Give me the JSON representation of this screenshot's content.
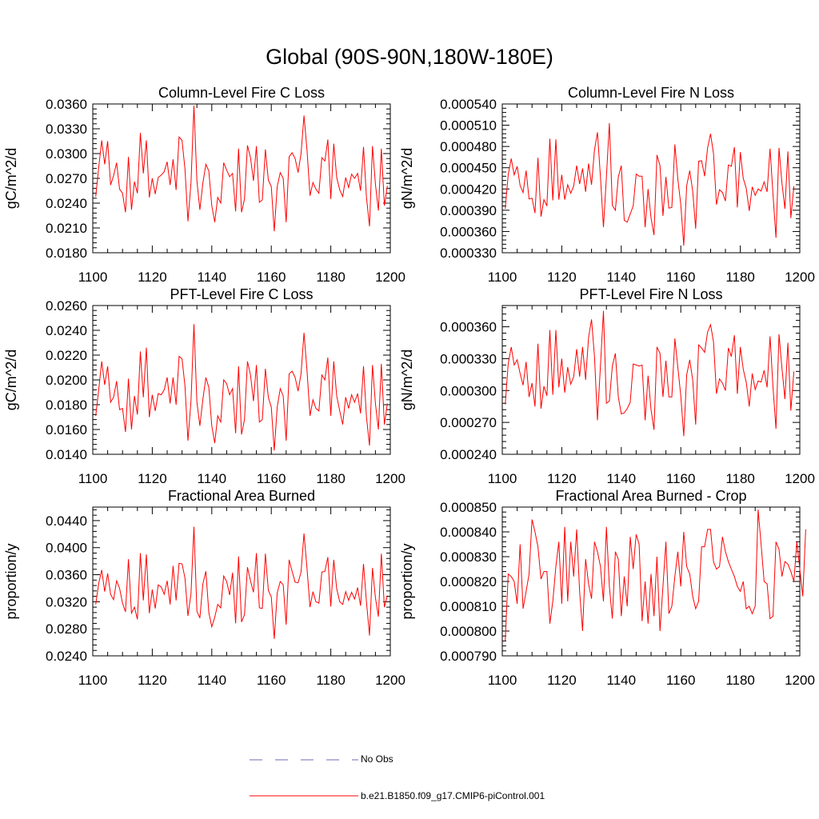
{
  "figure": {
    "title": "Global (90S-90N,180W-180E)",
    "series_color": "#ff0000",
    "obs_color": "#6a6ab8"
  },
  "legend": {
    "obs_label": "No Obs",
    "model_label": "b.e21.B1850.f09_g17.CMIP6-piControl.001"
  },
  "chart_data": [
    {
      "type": "line",
      "title": "Column-Level Fire C Loss",
      "xlabel": "",
      "ylabel": "gC/m^2/d",
      "xlim": [
        1100,
        1200
      ],
      "ylim": [
        0.018,
        0.036
      ],
      "x_ticks": [
        "1100",
        "1120",
        "1140",
        "1160",
        "1180",
        "1200"
      ],
      "y_ticks": [
        "0.0180",
        "0.0210",
        "0.0240",
        "0.0270",
        "0.0300",
        "0.0330",
        "0.0360"
      ],
      "x_start": 1101,
      "series": [
        {
          "name": "b.e21.B1850.f09_g17.CMIP6-piControl.001",
          "values": [
            0.0248,
            0.0283,
            0.0316,
            0.0287,
            0.0315,
            0.0262,
            0.0273,
            0.0289,
            0.0257,
            0.0252,
            0.0229,
            0.0296,
            0.0232,
            0.0266,
            0.0252,
            0.0325,
            0.0276,
            0.0316,
            0.0247,
            0.027,
            0.0251,
            0.0271,
            0.0274,
            0.0278,
            0.029,
            0.0262,
            0.0293,
            0.0256,
            0.032,
            0.0316,
            0.0281,
            0.0218,
            0.0265,
            0.0358,
            0.0267,
            0.0232,
            0.0264,
            0.0287,
            0.0279,
            0.0237,
            0.0217,
            0.0247,
            0.024,
            0.0289,
            0.028,
            0.0272,
            0.0276,
            0.023,
            0.0306,
            0.0229,
            0.0245,
            0.031,
            0.0295,
            0.0267,
            0.0309,
            0.0241,
            0.0244,
            0.0305,
            0.0268,
            0.026,
            0.0206,
            0.026,
            0.0277,
            0.027,
            0.0217,
            0.0296,
            0.0301,
            0.0294,
            0.0277,
            0.03,
            0.0346,
            0.0305,
            0.0249,
            0.0265,
            0.0257,
            0.0252,
            0.0295,
            0.0291,
            0.0317,
            0.0245,
            0.0312,
            0.0271,
            0.0256,
            0.0248,
            0.0271,
            0.0259,
            0.0275,
            0.027,
            0.0276,
            0.0255,
            0.0308,
            0.0247,
            0.0212,
            0.0309,
            0.0263,
            0.0231,
            0.0306,
            0.0237,
            0.0261
          ]
        }
      ]
    },
    {
      "type": "line",
      "title": "Column-Level Fire N Loss",
      "xlabel": "",
      "ylabel": "gN/m^2/d",
      "xlim": [
        1100,
        1200
      ],
      "ylim": [
        0.00033,
        0.00054
      ],
      "x_ticks": [
        "1100",
        "1120",
        "1140",
        "1160",
        "1180",
        "1200"
      ],
      "y_ticks": [
        "0.000330",
        "0.000360",
        "0.000390",
        "0.000420",
        "0.000450",
        "0.000480",
        "0.000510",
        "0.000540"
      ],
      "x_start": 1101,
      "series": [
        {
          "name": "b.e21.B1850.f09_g17.CMIP6-piControl.001",
          "values": [
            0.000392,
            0.00044,
            0.000463,
            0.00044,
            0.000452,
            0.000425,
            0.000415,
            0.000446,
            0.000406,
            0.000407,
            0.000386,
            0.000464,
            0.000381,
            0.000405,
            0.000396,
            0.000491,
            0.000404,
            0.00049,
            0.000405,
            0.00044,
            0.000405,
            0.000426,
            0.000414,
            0.000424,
            0.000453,
            0.000427,
            0.000449,
            0.000416,
            0.000456,
            0.000426,
            0.000475,
            0.0005,
            0.000436,
            0.000366,
            0.000437,
            0.000513,
            0.000397,
            0.00039,
            0.000437,
            0.000453,
            0.000376,
            0.000373,
            0.000385,
            0.000396,
            0.000441,
            0.000438,
            0.000438,
            0.000366,
            0.00042,
            0.000379,
            0.000355,
            0.000468,
            0.000453,
            0.000382,
            0.000437,
            0.000393,
            0.000394,
            0.000483,
            0.000434,
            0.000398,
            0.00034,
            0.000425,
            0.000446,
            0.000417,
            0.000364,
            0.000459,
            0.00046,
            0.000438,
            0.000478,
            0.000498,
            0.00047,
            0.000398,
            0.000419,
            0.000415,
            0.000403,
            0.000454,
            0.000452,
            0.000479,
            0.000394,
            0.000472,
            0.000435,
            0.000421,
            0.000389,
            0.000423,
            0.000411,
            0.00042,
            0.000417,
            0.00043,
            0.000416,
            0.000477,
            0.000412,
            0.000351,
            0.000478,
            0.000428,
            0.000392,
            0.000473,
            0.000379,
            0.000424
          ]
        }
      ]
    },
    {
      "type": "line",
      "title": "PFT-Level Fire C Loss",
      "xlabel": "",
      "ylabel": "gC/m^2/d",
      "xlim": [
        1100,
        1200
      ],
      "ylim": [
        0.014,
        0.026
      ],
      "x_ticks": [
        "1100",
        "1120",
        "1140",
        "1160",
        "1180",
        "1200"
      ],
      "y_ticks": [
        "0.0140",
        "0.0160",
        "0.0180",
        "0.0200",
        "0.0220",
        "0.0240",
        "0.0260"
      ],
      "x_start": 1101,
      "series": [
        {
          "name": "b.e21.B1850.f09_g17.CMIP6-piControl.001",
          "values": [
            0.0171,
            0.0192,
            0.0215,
            0.0196,
            0.0211,
            0.0182,
            0.0186,
            0.0199,
            0.0176,
            0.0177,
            0.0158,
            0.0201,
            0.016,
            0.0187,
            0.0172,
            0.0223,
            0.0186,
            0.0226,
            0.017,
            0.0188,
            0.0175,
            0.0189,
            0.0188,
            0.0192,
            0.0202,
            0.0181,
            0.0202,
            0.018,
            0.0219,
            0.0217,
            0.0195,
            0.0151,
            0.0183,
            0.0245,
            0.0182,
            0.0163,
            0.0184,
            0.0202,
            0.0194,
            0.0163,
            0.0149,
            0.0171,
            0.0166,
            0.02,
            0.0197,
            0.0188,
            0.0193,
            0.0157,
            0.0211,
            0.0156,
            0.0168,
            0.0215,
            0.0204,
            0.0183,
            0.0212,
            0.0166,
            0.0168,
            0.0209,
            0.0186,
            0.0178,
            0.0143,
            0.0178,
            0.0193,
            0.0187,
            0.0151,
            0.0205,
            0.0207,
            0.0202,
            0.0191,
            0.0205,
            0.0238,
            0.0208,
            0.0171,
            0.0184,
            0.0177,
            0.0175,
            0.0204,
            0.02,
            0.0218,
            0.0171,
            0.0215,
            0.0187,
            0.0175,
            0.0164,
            0.0186,
            0.0177,
            0.0188,
            0.0182,
            0.0189,
            0.0173,
            0.0211,
            0.017,
            0.0147,
            0.0212,
            0.0181,
            0.016,
            0.0213,
            0.0164,
            0.0181
          ]
        }
      ]
    },
    {
      "type": "line",
      "title": "PFT-Level Fire N Loss",
      "xlabel": "",
      "ylabel": "gN/m^2/d",
      "xlim": [
        1100,
        1200
      ],
      "ylim": [
        0.00024,
        0.00038
      ],
      "x_ticks": [
        "1100",
        "1120",
        "1140",
        "1160",
        "1180",
        "1200"
      ],
      "y_ticks": [
        "0.000240",
        "0.000270",
        "0.000300",
        "0.000330",
        "0.000360"
      ],
      "x_start": 1101,
      "series": [
        {
          "name": "b.e21.B1850.f09_g17.CMIP6-piControl.001",
          "values": [
            0.000287,
            0.000325,
            0.000341,
            0.000324,
            0.000329,
            0.000316,
            0.000305,
            0.000327,
            0.000294,
            0.000307,
            0.000285,
            0.000344,
            0.000283,
            0.000304,
            0.000295,
            0.000357,
            0.000296,
            0.000357,
            0.000303,
            0.00033,
            0.000298,
            0.000322,
            0.000306,
            0.000313,
            0.000339,
            0.000313,
            0.000341,
            0.00031,
            0.00035,
            0.000367,
            0.000332,
            0.000272,
            0.000324,
            0.000375,
            0.000288,
            0.00029,
            0.000323,
            0.000335,
            0.000294,
            0.000278,
            0.000279,
            0.000283,
            0.000289,
            0.000325,
            0.000324,
            0.000323,
            0.000324,
            0.000272,
            0.000314,
            0.000282,
            0.000263,
            0.000341,
            0.000335,
            0.000294,
            0.000328,
            0.000294,
            0.000294,
            0.000349,
            0.000322,
            0.000295,
            0.000257,
            0.000315,
            0.000329,
            0.00031,
            0.000268,
            0.000343,
            0.00034,
            0.000336,
            0.000355,
            0.000362,
            0.000346,
            0.000297,
            0.000311,
            0.000307,
            0.0003,
            0.00034,
            0.000332,
            0.000352,
            0.000297,
            0.000341,
            0.00032,
            0.000308,
            0.000285,
            0.000316,
            0.000301,
            0.000309,
            0.000308,
            0.000319,
            0.000303,
            0.000351,
            0.000303,
            0.000264,
            0.000353,
            0.000321,
            0.000292,
            0.000345,
            0.000281,
            0.000318
          ]
        }
      ]
    },
    {
      "type": "line",
      "title": "Fractional Area Burned",
      "xlabel": "",
      "ylabel": "proportion/y",
      "xlim": [
        1100,
        1200
      ],
      "ylim": [
        0.024,
        0.046
      ],
      "x_ticks": [
        "1100",
        "1120",
        "1140",
        "1160",
        "1180",
        "1200"
      ],
      "y_ticks": [
        "0.0240",
        "0.0280",
        "0.0320",
        "0.0360",
        "0.0400",
        "0.0440"
      ],
      "x_start": 1101,
      "series": [
        {
          "name": "b.e21.B1850.f09_g17.CMIP6-piControl.001",
          "values": [
            0.0316,
            0.0347,
            0.0367,
            0.0335,
            0.0362,
            0.0331,
            0.0323,
            0.0351,
            0.034,
            0.0318,
            0.0305,
            0.0383,
            0.0303,
            0.0312,
            0.0294,
            0.0392,
            0.0322,
            0.039,
            0.0303,
            0.0338,
            0.031,
            0.0345,
            0.0342,
            0.0331,
            0.0351,
            0.0316,
            0.0373,
            0.0322,
            0.0377,
            0.0376,
            0.0355,
            0.0299,
            0.0332,
            0.0431,
            0.0306,
            0.0296,
            0.0346,
            0.0365,
            0.0304,
            0.0283,
            0.0297,
            0.0316,
            0.0311,
            0.0358,
            0.035,
            0.033,
            0.0363,
            0.0288,
            0.0387,
            0.029,
            0.0301,
            0.0371,
            0.0351,
            0.0334,
            0.0392,
            0.0311,
            0.031,
            0.0391,
            0.0337,
            0.0327,
            0.0265,
            0.0333,
            0.035,
            0.0345,
            0.0286,
            0.0382,
            0.0365,
            0.0349,
            0.0348,
            0.0364,
            0.0421,
            0.037,
            0.0312,
            0.0335,
            0.032,
            0.0318,
            0.0364,
            0.0365,
            0.0386,
            0.0313,
            0.0382,
            0.0339,
            0.032,
            0.0316,
            0.0335,
            0.0322,
            0.0334,
            0.0324,
            0.0341,
            0.0314,
            0.0376,
            0.032,
            0.027,
            0.037,
            0.0326,
            0.0298,
            0.0391,
            0.0312,
            0.0329
          ]
        }
      ]
    },
    {
      "type": "line",
      "title": "Fractional Area Burned - Crop",
      "xlabel": "",
      "ylabel": "proportion/y",
      "xlim": [
        1100,
        1200
      ],
      "ylim": [
        0.00079,
        0.00085
      ],
      "x_ticks": [
        "1100",
        "1120",
        "1140",
        "1160",
        "1180",
        "1200"
      ],
      "y_ticks": [
        "0.000790",
        "0.000800",
        "0.000810",
        "0.000820",
        "0.000830",
        "0.000840",
        "0.000850"
      ],
      "x_start": 1101,
      "series": [
        {
          "name": "b.e21.B1850.f09_g17.CMIP6-piControl.001",
          "values": [
            0.000796,
            0.000823,
            0.000822,
            0.00082,
            0.000811,
            0.000835,
            0.000809,
            0.000816,
            0.000823,
            0.000845,
            0.00084,
            0.000834,
            0.000821,
            0.000824,
            0.000824,
            0.000803,
            0.000812,
            0.000826,
            0.000836,
            0.000811,
            0.000842,
            0.000812,
            0.000836,
            0.000822,
            0.000841,
            0.000816,
            0.0008,
            0.000829,
            0.000819,
            0.000813,
            0.000836,
            0.000832,
            0.000826,
            0.000812,
            0.000842,
            0.000818,
            0.000805,
            0.000832,
            0.000829,
            0.000806,
            0.000822,
            0.00081,
            0.000838,
            0.000825,
            0.000839,
            0.000835,
            0.000804,
            0.00082,
            0.000803,
            0.000823,
            0.000806,
            0.00083,
            0.0008,
            0.000818,
            0.000836,
            0.000807,
            0.00081,
            0.000822,
            0.000832,
            0.000818,
            0.00084,
            0.000826,
            0.000823,
            0.000814,
            0.000809,
            0.000812,
            0.000834,
            0.000834,
            0.000841,
            0.000841,
            0.000828,
            0.000825,
            0.000826,
            0.000838,
            0.000832,
            0.000828,
            0.000825,
            0.000822,
            0.000818,
            0.000816,
            0.00082,
            0.000809,
            0.00081,
            0.000807,
            0.00081,
            0.000849,
            0.000835,
            0.00082,
            0.000819,
            0.000805,
            0.000806,
            0.000836,
            0.000833,
            0.000822,
            0.000828,
            0.000827,
            0.000824,
            0.00082,
            0.000836,
            0.000825,
            0.000814,
            0.000841
          ]
        }
      ]
    }
  ]
}
